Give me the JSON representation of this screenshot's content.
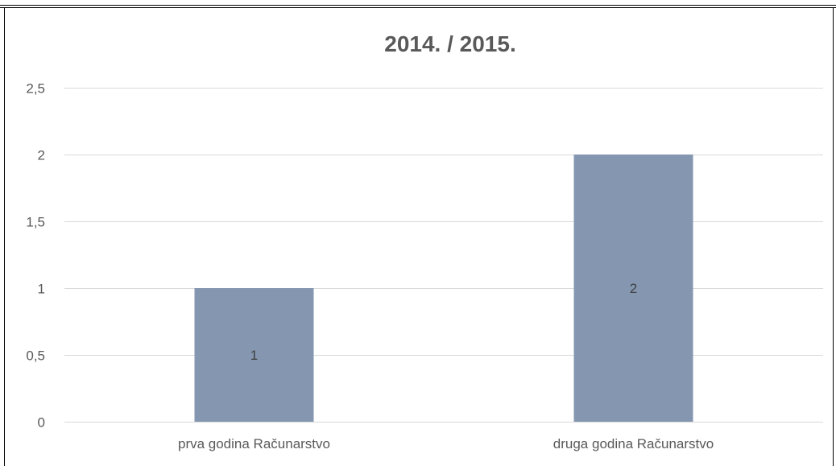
{
  "chart_data": {
    "type": "bar",
    "title": "2014. / 2015.",
    "categories": [
      "prva godina Računarstvo",
      "druga godina Računarstvo"
    ],
    "values": [
      1,
      2
    ],
    "data_labels": [
      "1",
      "2"
    ],
    "ylim": [
      0,
      2.5
    ],
    "yticks": [
      "0",
      "0,5",
      "1",
      "1,5",
      "2",
      "2,5"
    ],
    "grid": true,
    "legend": "none",
    "colors": {
      "bar": "#8496b0",
      "grid": "#d9d9d9",
      "text": "#595959",
      "title": "#595959",
      "frame": "#000000"
    }
  }
}
